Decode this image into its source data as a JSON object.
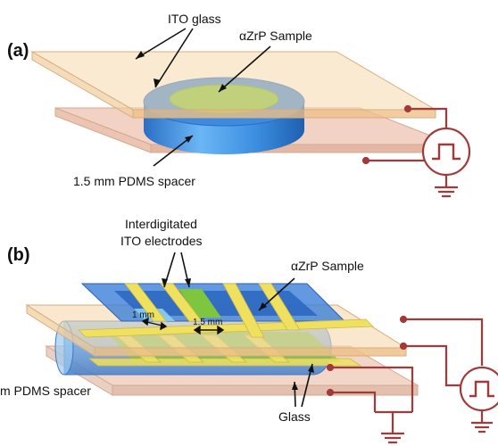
{
  "panel_a": {
    "label": "(a)",
    "ito_glass_label": "ITO glass",
    "sample_label": "αZrP Sample",
    "spacer_label": "1.5 mm PDMS spacer"
  },
  "panel_b": {
    "label": "(b)",
    "electrodes_label_line1": "Interdigitated",
    "electrodes_label_line2": "ITO electrodes",
    "sample_label": "αZrP Sample",
    "gap_label": "1 mm",
    "width_label": "1.5 mm",
    "spacer_label": "m PDMS spacer",
    "glass_label": "Glass"
  },
  "colors": {
    "ito_plate": "#f5d9ad",
    "glass_plate": "#f2d6c8",
    "pdms_blue": "#3f8fd9",
    "sample_green": "#7ec63f",
    "electrode_yellow": "#f0e060",
    "wire": "#a33a3a"
  }
}
